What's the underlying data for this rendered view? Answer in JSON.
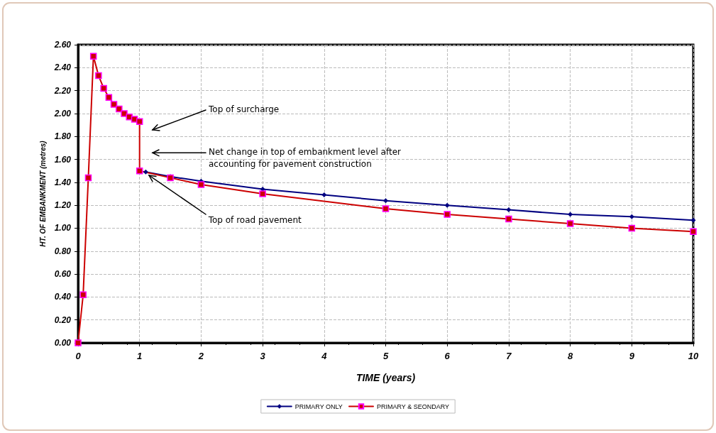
{
  "chart_data": {
    "type": "line",
    "xlabel": "TIME (years)",
    "ylabel": "HT. OF EMBANKMENT (metres)",
    "series": [
      {
        "name": "PRIMARY ONLY",
        "color": "#000080",
        "marker": "diamond",
        "x": [
          1.1,
          1.5,
          2,
          3,
          4,
          5,
          6,
          7,
          8,
          9,
          10
        ],
        "values": [
          1.49,
          1.45,
          1.41,
          1.34,
          1.29,
          1.24,
          1.2,
          1.16,
          1.12,
          1.1,
          1.07
        ]
      },
      {
        "name": "PRIMARY & SEONDARY",
        "color": "#cc0000",
        "marker": "square",
        "x": [
          0,
          0.083,
          0.167,
          0.25,
          0.333,
          0.417,
          0.5,
          0.583,
          0.667,
          0.75,
          0.833,
          0.917,
          1,
          1,
          1.5,
          2,
          3,
          5,
          6,
          7,
          8,
          9,
          10
        ],
        "values": [
          0,
          0.42,
          1.44,
          2.5,
          2.33,
          2.22,
          2.14,
          2.08,
          2.04,
          2.0,
          1.97,
          1.95,
          1.93,
          1.5,
          1.44,
          1.38,
          1.3,
          1.17,
          1.12,
          1.08,
          1.04,
          1.0,
          0.97
        ]
      }
    ],
    "xlim": [
      0,
      10
    ],
    "xticks": [
      0,
      1,
      2,
      3,
      4,
      5,
      6,
      7,
      8,
      9,
      10
    ],
    "ylim": [
      0,
      2.6
    ],
    "yticks": [
      {
        "value": 0,
        "label": "0.00"
      },
      {
        "value": 0.2,
        "label": "0.20"
      },
      {
        "value": 0.4,
        "label": "0.40"
      },
      {
        "value": 0.6,
        "label": "0.60"
      },
      {
        "value": 0.8,
        "label": "0.80"
      },
      {
        "value": 1.0,
        "label": "1.00"
      },
      {
        "value": 1.2,
        "label": "1.20"
      },
      {
        "value": 1.4,
        "label": "1.40"
      },
      {
        "value": 1.6,
        "label": "1.60"
      },
      {
        "value": 1.8,
        "label": "1.80"
      },
      {
        "value": 2.0,
        "label": "2.00"
      },
      {
        "value": 2.2,
        "label": "2.20"
      },
      {
        "value": 2.4,
        "label": "2.40"
      },
      {
        "value": 2.6,
        "label": "2.60"
      }
    ],
    "grid": true,
    "legend": "bottom",
    "line_style": "solid",
    "annotations": [
      "Top of surcharge",
      "Net change in top of embankment level after\naccounting for pavement construction",
      {
        "text": "Top of road pavement",
        "x": 1.15,
        "y": 1.46
      }
    ]
  }
}
